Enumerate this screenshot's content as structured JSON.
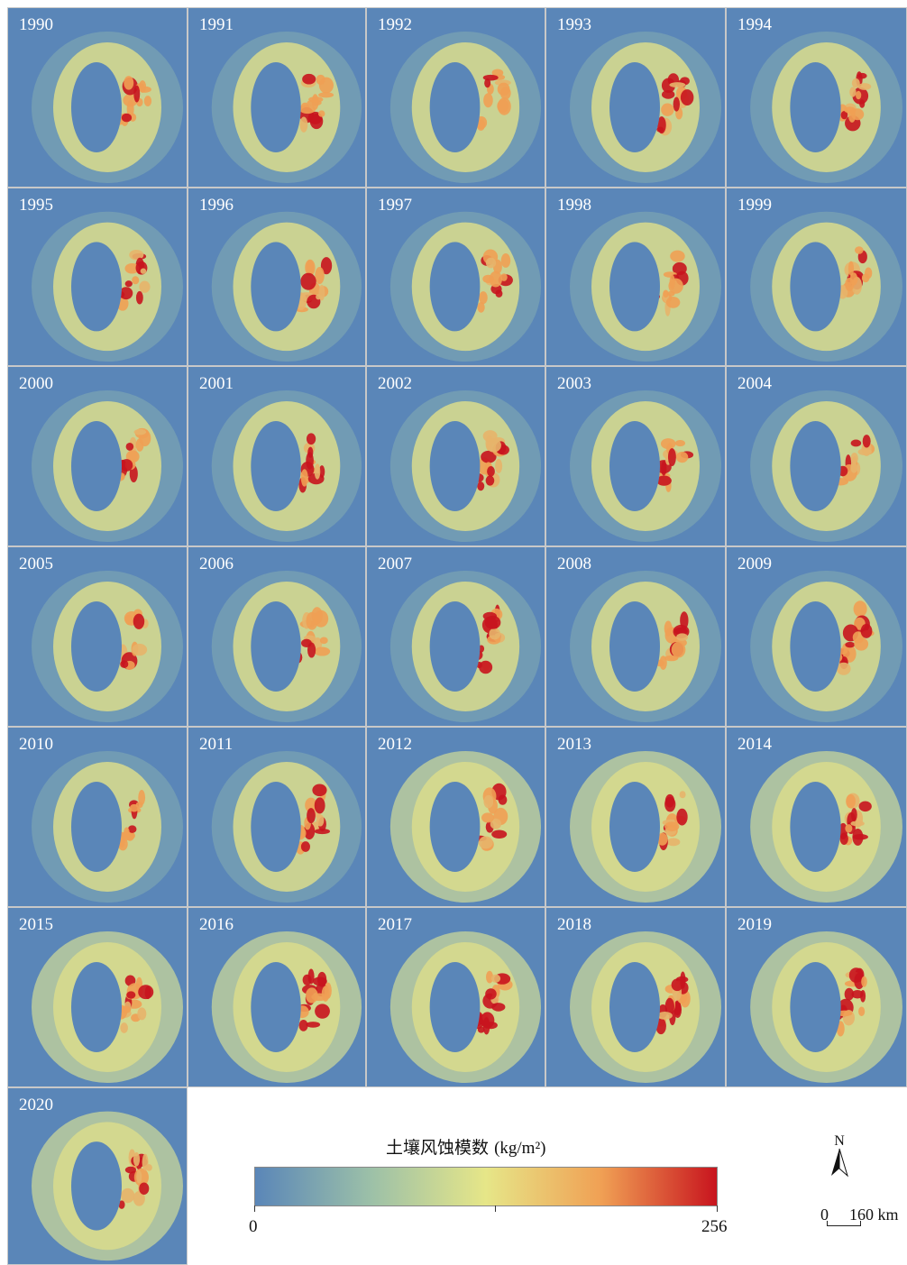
{
  "panels": [
    {
      "year": "1990",
      "intensity": 0.6
    },
    {
      "year": "1991",
      "intensity": 0.65
    },
    {
      "year": "1992",
      "intensity": 0.5
    },
    {
      "year": "1993",
      "intensity": 0.7
    },
    {
      "year": "1994",
      "intensity": 0.65
    },
    {
      "year": "1995",
      "intensity": 0.55
    },
    {
      "year": "1996",
      "intensity": 0.6
    },
    {
      "year": "1997",
      "intensity": 0.55
    },
    {
      "year": "1998",
      "intensity": 0.55
    },
    {
      "year": "1999",
      "intensity": 0.55
    },
    {
      "year": "2000",
      "intensity": 0.6
    },
    {
      "year": "2001",
      "intensity": 0.55
    },
    {
      "year": "2002",
      "intensity": 0.7
    },
    {
      "year": "2003",
      "intensity": 0.55
    },
    {
      "year": "2004",
      "intensity": 0.5
    },
    {
      "year": "2005",
      "intensity": 0.45
    },
    {
      "year": "2006",
      "intensity": 0.5
    },
    {
      "year": "2007",
      "intensity": 0.75
    },
    {
      "year": "2008",
      "intensity": 0.5
    },
    {
      "year": "2009",
      "intensity": 0.75
    },
    {
      "year": "2010",
      "intensity": 0.4
    },
    {
      "year": "2011",
      "intensity": 0.75
    },
    {
      "year": "2012",
      "intensity": 0.6
    },
    {
      "year": "2013",
      "intensity": 0.65
    },
    {
      "year": "2014",
      "intensity": 0.65
    },
    {
      "year": "2015",
      "intensity": 0.7
    },
    {
      "year": "2016",
      "intensity": 0.7
    },
    {
      "year": "2017",
      "intensity": 0.85
    },
    {
      "year": "2018",
      "intensity": 0.85
    },
    {
      "year": "2019",
      "intensity": 0.8
    },
    {
      "year": "2020",
      "intensity": 0.85
    }
  ],
  "legend": {
    "title_cn": "土壤风蚀模数",
    "title_unit": "(kg/m²)",
    "min_label": "0",
    "max_label": "256",
    "colors": [
      "#5a86b8",
      "#9cc0a8",
      "#e6e688",
      "#f0a054",
      "#c8141e"
    ]
  },
  "north_arrow": {
    "label": "N"
  },
  "scale_bar": {
    "start_label": "0",
    "end_label": "160 km"
  }
}
